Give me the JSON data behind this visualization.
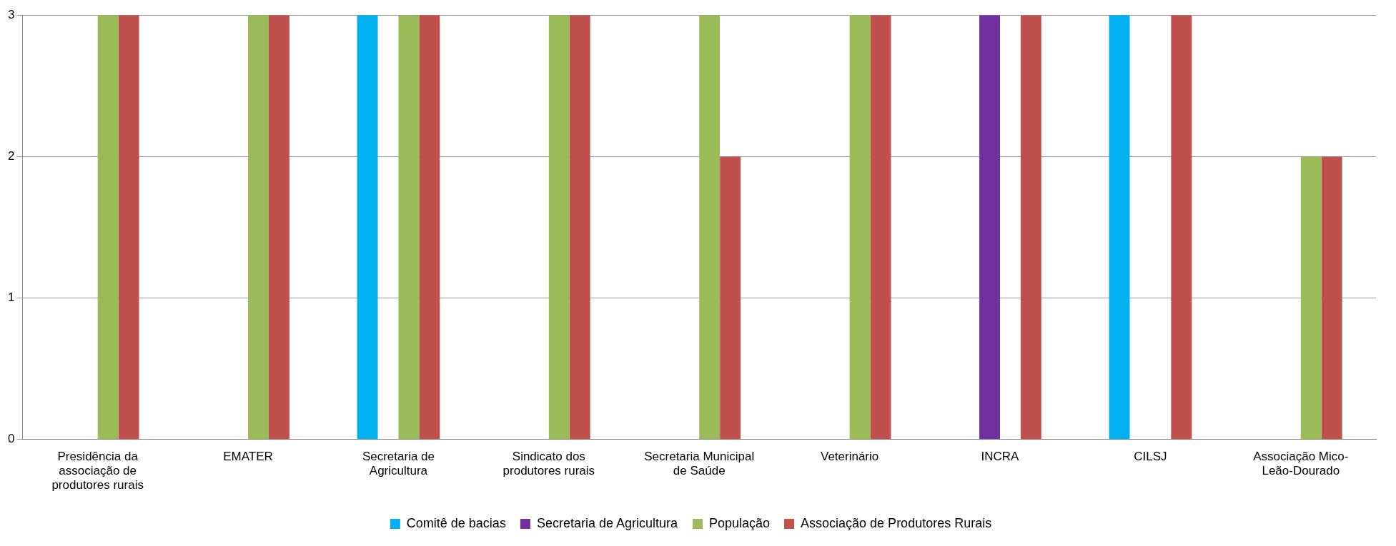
{
  "chart_data": {
    "type": "bar",
    "categories": [
      "Presidência da associação de produtores rurais",
      "EMATER",
      "Secretaria de Agricultura",
      "Sindicato dos produtores rurais",
      "Secretaria Municipal de Saúde",
      "Veterinário",
      "INCRA",
      "CILSJ",
      "Associação Mico-Leão-Dourado"
    ],
    "series": [
      {
        "name": "Comitê de bacias",
        "color": "#00b0f0",
        "values": [
          0,
          0,
          3,
          0,
          0,
          0,
          0,
          3,
          0
        ]
      },
      {
        "name": "Secretaria de Agricultura",
        "color": "#7030a0",
        "values": [
          0,
          0,
          0,
          0,
          0,
          0,
          3,
          0,
          0
        ]
      },
      {
        "name": "População",
        "color": "#9bbb59",
        "values": [
          3,
          3,
          3,
          3,
          3,
          3,
          0,
          0,
          2
        ]
      },
      {
        "name": "Associação de Produtores Rurais",
        "color": "#c0504d",
        "values": [
          3,
          3,
          3,
          3,
          2,
          3,
          3,
          3,
          2
        ]
      }
    ],
    "ylim": [
      0,
      3
    ],
    "yticks": [
      0,
      1,
      2,
      3
    ],
    "grid": "y",
    "legend": "bottom"
  }
}
